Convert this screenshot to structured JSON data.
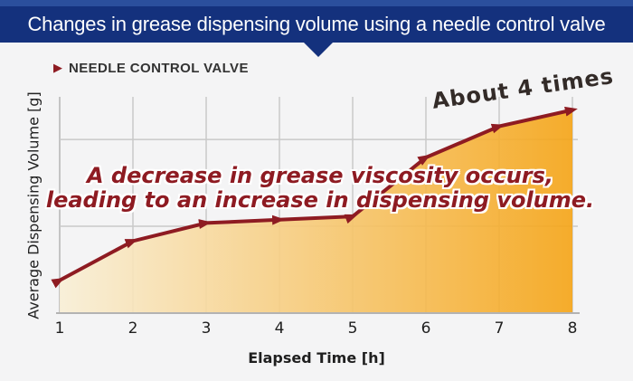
{
  "theme": {
    "navy": "#14317d",
    "navy_light": "#2b4f9d",
    "maroon": "#8e1b22",
    "dark_text": "#332b28",
    "grid_color": "#c9c9c9",
    "axis_color": "#b3b3b3",
    "tick_text": "#1f1f1f",
    "bg": "#f4f4f5",
    "fill_start": "#f9efd6",
    "fill_end": "#f5a415"
  },
  "header": {
    "title": "Changes in grease dispensing volume using a needle control valve"
  },
  "section_label": {
    "arrow_icon": "▶",
    "text": "NEEDLE CONTROL VALVE"
  },
  "annotations": {
    "multiplier": "About 4 times",
    "callout_line1": "A decrease in grease viscosity occurs,",
    "callout_line2": "leading to an increase in dispensing volume."
  },
  "chart_data": {
    "type": "area",
    "title": "",
    "xlabel": "Elapsed Time [h]",
    "ylabel": "Average Dispensing Volume [g]",
    "x": [
      1,
      2,
      3,
      4,
      5,
      6,
      7,
      8
    ],
    "values": [
      1.0,
      2.2,
      2.75,
      2.85,
      2.95,
      4.75,
      5.7,
      6.2
    ],
    "values_note": "relative units estimated from plot; y axis has no numeric tick labels",
    "ylim": [
      0,
      6.6
    ],
    "ygrid_values": [
      2.65,
      5.3
    ],
    "grid": true,
    "legend": "none",
    "line_color": "#8e1b22",
    "marker": "arrowhead",
    "fill_gradient": [
      "#f9efd6",
      "#f5a415"
    ]
  }
}
